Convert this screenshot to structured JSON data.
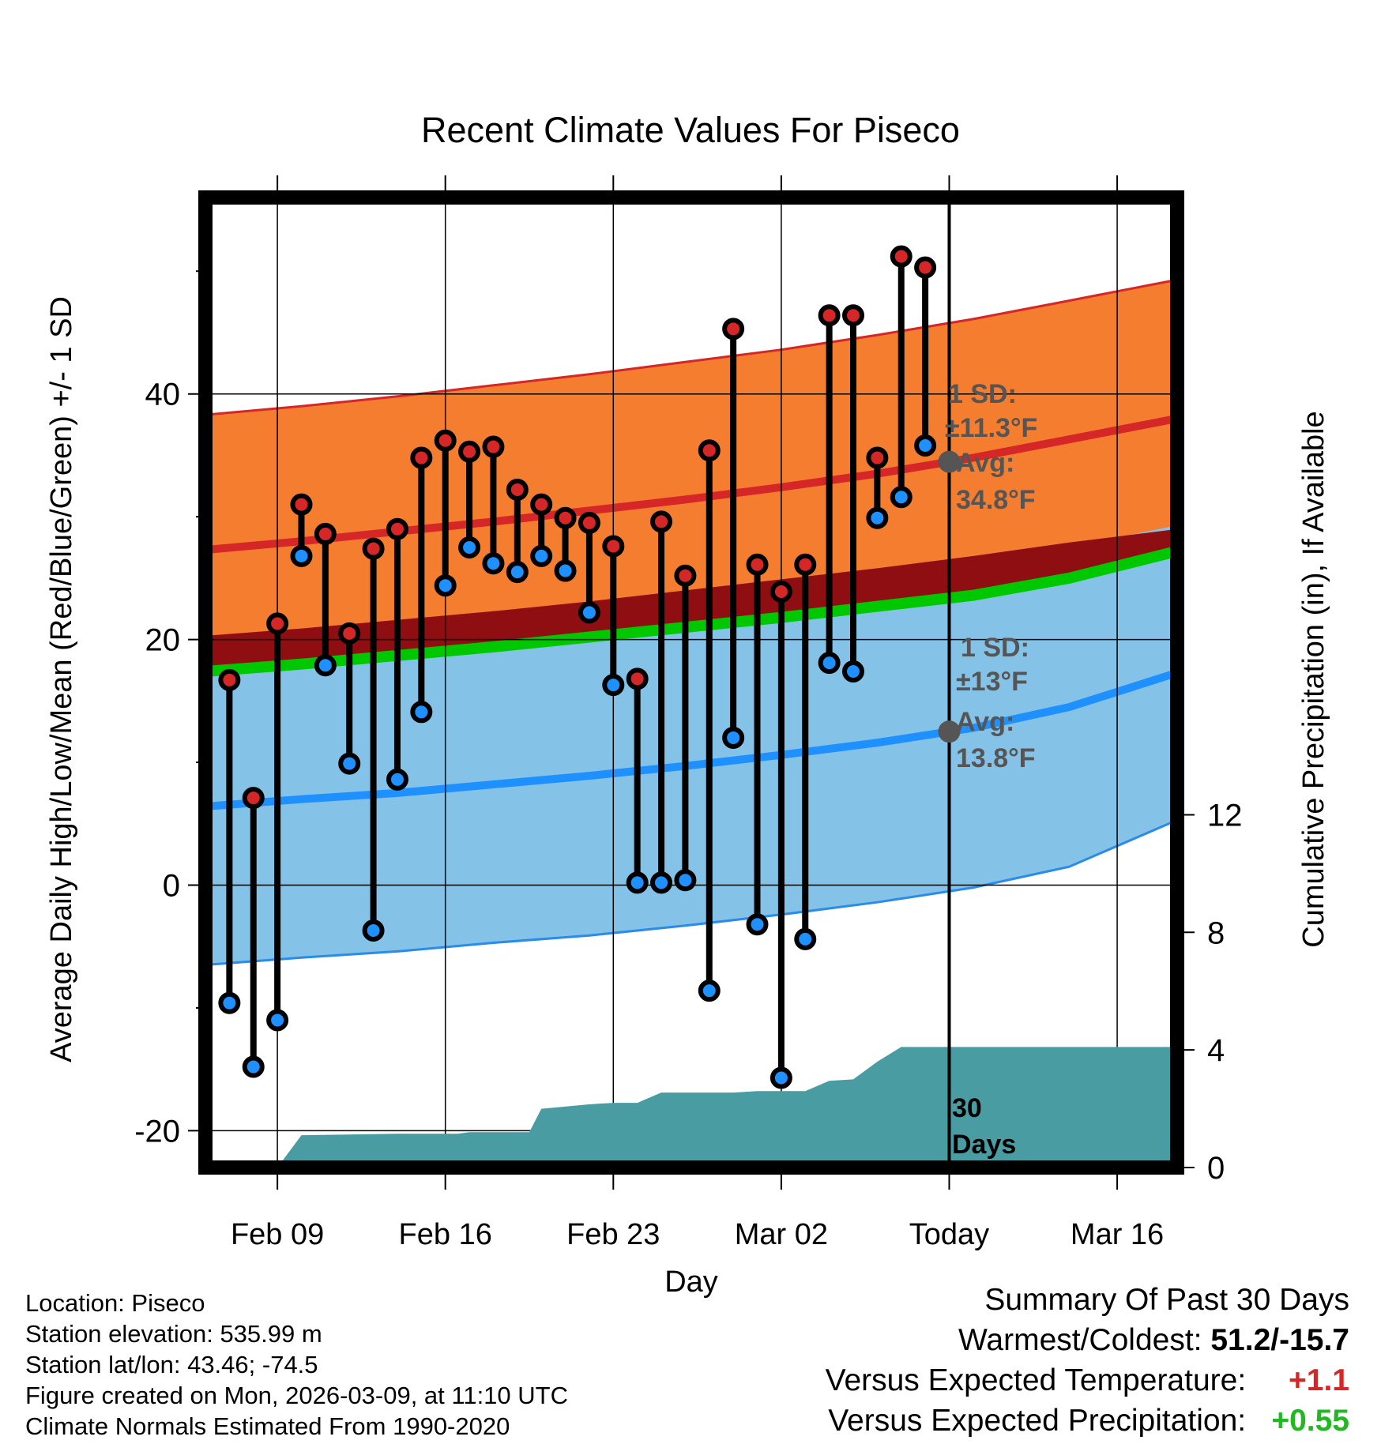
{
  "chart_data": {
    "type": "line",
    "title": "Recent Climate Values For Piseco",
    "xlabel": "Day",
    "ylabel": "Average Daily High/Low/Mean (Red/Blue/Green) +/- 1 SD",
    "ylabel_right": "Cumulative Precipitation (in), If Available",
    "x_ticks": [
      "Feb 09",
      "Feb 16",
      "Feb 23",
      "Mar 02",
      "Today",
      "Mar 16"
    ],
    "x_tick_days": [
      3,
      10,
      17,
      24,
      31,
      38
    ],
    "x_range_days": [
      0,
      40.5
    ],
    "ylim": [
      -23,
      56
    ],
    "y_ticks": [
      -20,
      0,
      20,
      40
    ],
    "y_ticks_right": [
      0,
      4,
      8,
      12
    ],
    "ylim_right": [
      0,
      33
    ],
    "today_day": 31,
    "normals": {
      "days": [
        0,
        4,
        8,
        12,
        16,
        20,
        24,
        28,
        32,
        36,
        40.5
      ],
      "high": [
        27.3,
        28.0,
        28.8,
        29.6,
        30.5,
        31.4,
        32.4,
        33.5,
        34.8,
        36.3,
        38.0
      ],
      "high_sd": [
        11.0,
        11.0,
        11.0,
        11.1,
        11.1,
        11.2,
        11.2,
        11.3,
        11.3,
        11.3,
        11.3
      ],
      "mean": [
        17.4,
        18.0,
        18.7,
        19.4,
        20.2,
        21.0,
        21.8,
        22.7,
        23.6,
        25.0,
        27.2
      ],
      "low": [
        6.4,
        7.0,
        7.5,
        8.2,
        8.9,
        9.7,
        10.6,
        11.6,
        12.8,
        14.5,
        17.3
      ],
      "low_sd": [
        12.9,
        12.9,
        12.9,
        12.9,
        13.0,
        13.0,
        13.0,
        13.0,
        13.0,
        13.0,
        12.0
      ],
      "mean_band_top": [
        20.3,
        20.9,
        21.6,
        22.3,
        23.1,
        24.0,
        24.9,
        25.8,
        26.8,
        27.9,
        29.0
      ]
    },
    "observed": {
      "days": [
        1,
        2,
        3,
        4,
        5,
        6,
        7,
        8,
        9,
        10,
        11,
        12,
        13,
        14,
        15,
        16,
        17,
        18,
        19,
        20,
        21,
        22,
        23,
        24,
        25,
        26,
        27,
        28,
        29,
        30
      ],
      "high": [
        16.7,
        7.1,
        21.3,
        31.0,
        28.6,
        20.5,
        27.4,
        29.0,
        34.8,
        36.2,
        35.3,
        35.7,
        32.2,
        31.0,
        29.9,
        29.5,
        27.6,
        16.8,
        29.6,
        25.2,
        35.4,
        45.3,
        26.1,
        23.9,
        26.1,
        46.4,
        46.4,
        34.8,
        51.2,
        50.3
      ],
      "low": [
        -9.6,
        -14.8,
        -11.0,
        26.8,
        17.9,
        9.9,
        -3.7,
        8.6,
        14.1,
        24.4,
        27.5,
        26.2,
        25.5,
        26.8,
        25.6,
        22.2,
        16.3,
        0.2,
        0.2,
        0.4,
        -8.6,
        12.0,
        -3.2,
        -15.7,
        -4.4,
        18.1,
        17.4,
        29.9,
        31.6,
        35.8
      ]
    },
    "precipitation_cumulative": {
      "days": [
        0,
        3.0,
        4.0,
        8.0,
        10.0,
        10.5,
        11.0,
        13.5,
        14.0,
        16.0,
        17.0,
        18.0,
        19.0,
        22.0,
        23.0,
        25.0,
        26.0,
        27.0,
        28.0,
        29.0,
        30.0,
        40.5
      ],
      "inches": [
        0,
        0,
        1.1,
        1.15,
        1.15,
        1.15,
        1.2,
        1.2,
        2.0,
        2.15,
        2.2,
        2.2,
        2.55,
        2.55,
        2.6,
        2.6,
        2.95,
        3.0,
        3.6,
        4.1,
        4.1,
        4.1
      ]
    },
    "annotations": {
      "high_sd_label": "1 SD:",
      "high_sd_value": "±11.3°F",
      "high_avg_label": "Avg:",
      "high_avg_value": "34.8°F",
      "low_sd_label": "1 SD:",
      "low_sd_value": "±13°F",
      "low_avg_label": "Avg:",
      "low_avg_value": "13.8°F",
      "days_num": "30",
      "days_word": "Days"
    },
    "colors": {
      "high_band": "#f47d30",
      "high_line": "#d62728",
      "mean_band": "#8f0e12",
      "mean_line": "#00c800",
      "low_band": "#84c2e7",
      "low_line": "#1e90ff",
      "low_edge": "#2b8bea",
      "precip": "#4a9ca3",
      "dot_high": "#d62728",
      "dot_low": "#1e90ff",
      "annot": "#555555"
    }
  },
  "footer": {
    "location": "Location: Piseco",
    "elevation": "Station elevation: 535.99 m",
    "latlon": "Station lat/lon: 43.46; -74.5",
    "created": "Figure created on Mon, 2026-03-09, at 11:10 UTC",
    "normals": "Climate Normals Estimated From 1990-2020",
    "summary_title": "Summary Of Past 30 Days",
    "warmest_label": "Warmest/Coldest:",
    "warmest_value": "51.2/-15.7",
    "temp_label": "Versus Expected Temperature:",
    "temp_value": "+1.1",
    "precip_label": "Versus Expected Precipitation:",
    "precip_value": "+0.55"
  }
}
